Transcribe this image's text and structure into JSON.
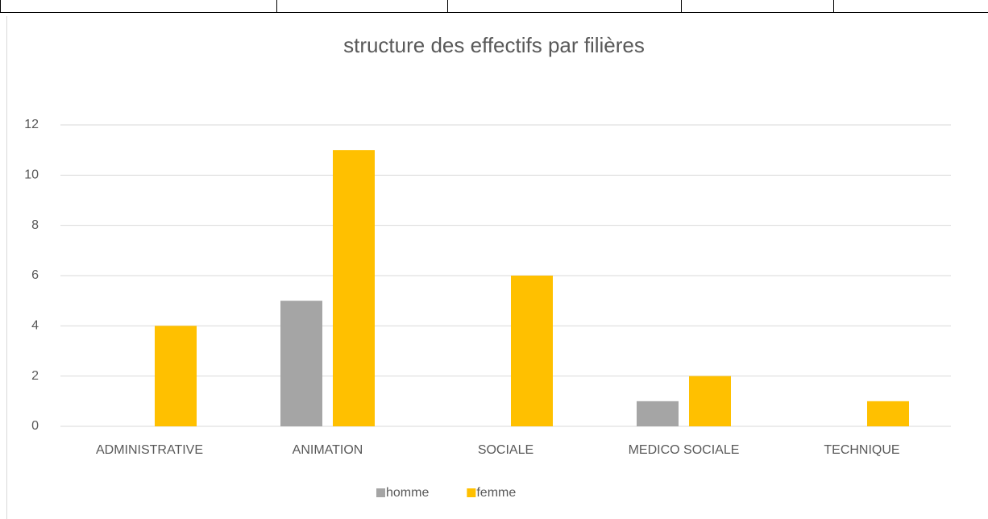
{
  "chart_data": {
    "type": "bar",
    "title": "structure des effectifs par filières",
    "categories": [
      "ADMINISTRATIVE",
      "ANIMATION",
      "SOCIALE",
      "MEDICO SOCIALE",
      "TECHNIQUE"
    ],
    "series": [
      {
        "name": "homme",
        "color": "#a5a5a5",
        "values": [
          0,
          5,
          0,
          1,
          0
        ]
      },
      {
        "name": "femme",
        "color": "#ffc000",
        "values": [
          4,
          11,
          6,
          2,
          1
        ]
      }
    ],
    "ylim": [
      0,
      12
    ],
    "yticks": [
      0,
      2,
      4,
      6,
      8,
      10,
      12
    ],
    "grid": true,
    "legend": "bottom"
  }
}
